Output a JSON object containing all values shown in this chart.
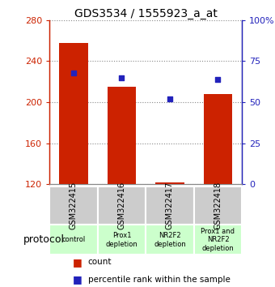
{
  "title": "GDS3534 / 1555923_a_at",
  "samples": [
    "GSM322415",
    "GSM322416",
    "GSM322417",
    "GSM322418"
  ],
  "counts": [
    258,
    215,
    122,
    208
  ],
  "percentiles": [
    68,
    65,
    52,
    64
  ],
  "ylim_left": [
    120,
    280
  ],
  "ylim_right": [
    0,
    100
  ],
  "yticks_left": [
    120,
    160,
    200,
    240,
    280
  ],
  "yticks_right": [
    0,
    25,
    50,
    75,
    100
  ],
  "ytick_labels_right": [
    "0",
    "25",
    "50",
    "75",
    "100%"
  ],
  "bar_color": "#cc2200",
  "dot_color": "#2222bb",
  "bar_width": 0.6,
  "protocols": [
    "control",
    "Prox1\ndepletion",
    "NR2F2\ndepletion",
    "Prox1 and\nNR2F2\ndepletion"
  ],
  "protocol_color": "#ccffcc",
  "sample_bg_color": "#cccccc",
  "grid_color": "#888888",
  "protocol_label": "protocol",
  "legend_count": "count",
  "legend_percentile": "percentile rank within the sample"
}
